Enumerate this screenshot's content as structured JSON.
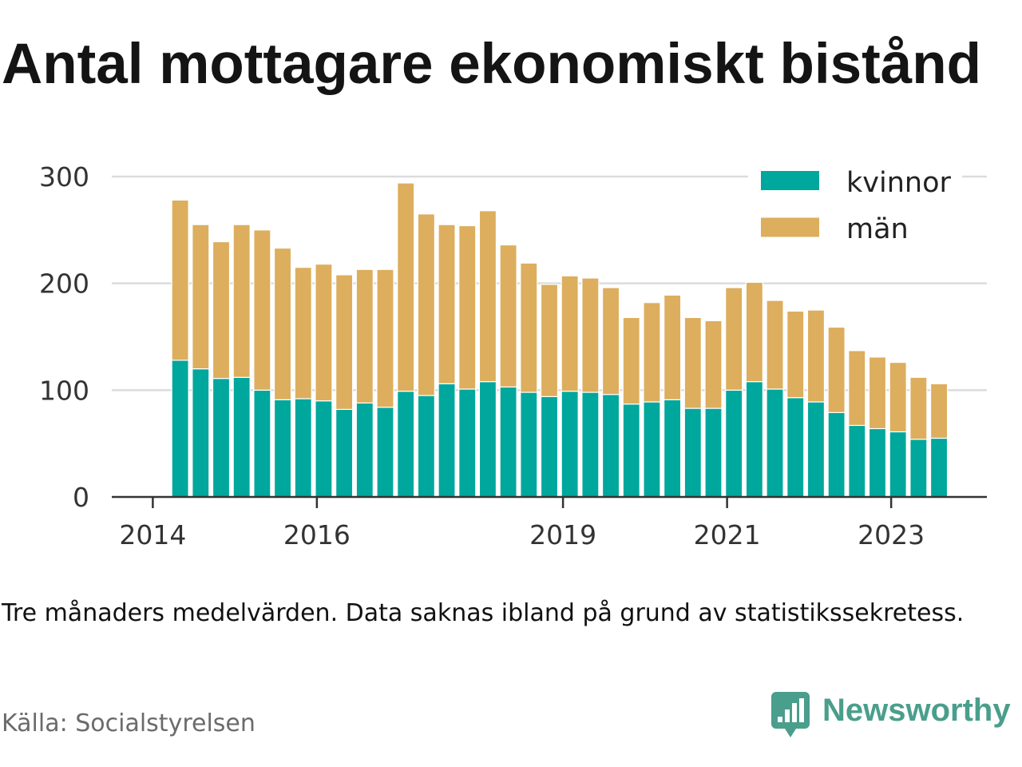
{
  "chart_data": {
    "type": "bar",
    "stacked": true,
    "title": "Antal mottagare ekonomiskt bistånd",
    "x": [
      "2014-05",
      "2014-08",
      "2014-11",
      "2015-02",
      "2015-05",
      "2015-08",
      "2015-11",
      "2016-02",
      "2016-05",
      "2016-08",
      "2016-11",
      "2017-02",
      "2017-05",
      "2017-08",
      "2017-11",
      "2018-02",
      "2018-05",
      "2018-08",
      "2018-11",
      "2019-02",
      "2019-05",
      "2019-08",
      "2019-11",
      "2020-02",
      "2020-05",
      "2020-08",
      "2020-11",
      "2021-02",
      "2021-05",
      "2021-08",
      "2021-11",
      "2022-02",
      "2022-05",
      "2022-08",
      "2022-11",
      "2023-02",
      "2023-05",
      "2023-08"
    ],
    "series": [
      {
        "name": "kvinnor",
        "color": "#00a79d",
        "values": [
          128,
          120,
          111,
          112,
          100,
          91,
          92,
          90,
          82,
          88,
          84,
          99,
          95,
          106,
          101,
          108,
          103,
          98,
          94,
          99,
          98,
          96,
          87,
          89,
          91,
          83,
          83,
          100,
          108,
          101,
          93,
          89,
          79,
          67,
          64,
          61,
          54,
          55
        ]
      },
      {
        "name": "män",
        "color": "#dcae5d",
        "values": [
          150,
          135,
          128,
          143,
          150,
          142,
          123,
          128,
          126,
          125,
          129,
          195,
          170,
          149,
          153,
          160,
          133,
          121,
          105,
          108,
          107,
          100,
          81,
          93,
          98,
          85,
          82,
          96,
          93,
          83,
          81,
          86,
          80,
          70,
          67,
          65,
          58,
          51
        ]
      }
    ],
    "ylim": [
      0,
      300
    ],
    "yticks": [
      0,
      100,
      200,
      300
    ],
    "xlim": [
      "2013-07",
      "2024-03"
    ],
    "xticks": [
      "2014",
      "2016",
      "2019",
      "2021",
      "2023"
    ],
    "grid": {
      "y": true,
      "x": false
    },
    "legend": "top-right"
  },
  "footnote": "Tre månaders medelvärden. Data saknas ibland på grund av statistikssekretess.",
  "source": "Källa: Socialstyrelsen",
  "logo": {
    "text": "Newsworthy",
    "color": "#4a9e8c",
    "icon": "newsworthy-chart-bubble-icon"
  }
}
